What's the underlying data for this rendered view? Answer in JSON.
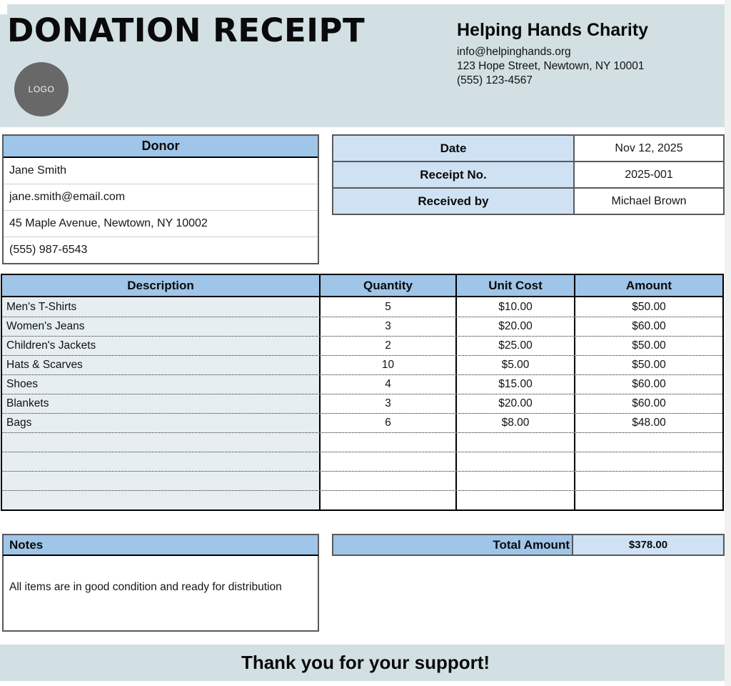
{
  "page": {
    "title": "DONATION RECEIPT",
    "logo_text": "LOGO",
    "footer_message": "Thank you for your support!"
  },
  "organization": {
    "name": "Helping Hands Charity",
    "email": "info@helpinghands.org",
    "address": "123 Hope Street, Newtown, NY 10001",
    "phone": "(555) 123-4567"
  },
  "donor": {
    "header": "Donor",
    "name": "Jane Smith",
    "email": "jane.smith@email.com",
    "address": "45 Maple Avenue, Newtown, NY 10002",
    "phone": "(555) 987-6543"
  },
  "receipt_meta": {
    "rows": [
      {
        "label": "Date",
        "value": "Nov 12, 2025"
      },
      {
        "label": "Receipt No.",
        "value": "2025-001"
      },
      {
        "label": "Received by",
        "value": "Michael Brown"
      }
    ]
  },
  "items": {
    "headers": [
      "Description",
      "Quantity",
      "Unit Cost",
      "Amount"
    ],
    "rows": [
      {
        "description": "Men's T-Shirts",
        "quantity": "5",
        "unit_cost": "$10.00",
        "amount": "$50.00"
      },
      {
        "description": "Women's Jeans",
        "quantity": "3",
        "unit_cost": "$20.00",
        "amount": "$60.00"
      },
      {
        "description": "Children's Jackets",
        "quantity": "2",
        "unit_cost": "$25.00",
        "amount": "$50.00"
      },
      {
        "description": "Hats & Scarves",
        "quantity": "10",
        "unit_cost": "$5.00",
        "amount": "$50.00"
      },
      {
        "description": "Shoes",
        "quantity": "4",
        "unit_cost": "$15.00",
        "amount": "$60.00"
      },
      {
        "description": "Blankets",
        "quantity": "3",
        "unit_cost": "$20.00",
        "amount": "$60.00"
      },
      {
        "description": "Bags",
        "quantity": "6",
        "unit_cost": "$8.00",
        "amount": "$48.00"
      },
      {
        "description": "",
        "quantity": "",
        "unit_cost": "",
        "amount": ""
      },
      {
        "description": "",
        "quantity": "",
        "unit_cost": "",
        "amount": ""
      },
      {
        "description": "",
        "quantity": "",
        "unit_cost": "",
        "amount": ""
      },
      {
        "description": "",
        "quantity": "",
        "unit_cost": "",
        "amount": ""
      }
    ]
  },
  "notes": {
    "header": "Notes",
    "text": "All items are in good condition and ready for distribution"
  },
  "total": {
    "label": "Total Amount",
    "value": "$378.00"
  },
  "colors": {
    "header_band": "#d2e0e3",
    "table_header_blue": "#9fc5e8",
    "label_light_blue": "#cfe2f3",
    "description_cell": "#e6eef1",
    "logo_gray": "#686868",
    "border_gray": "#58595b"
  }
}
